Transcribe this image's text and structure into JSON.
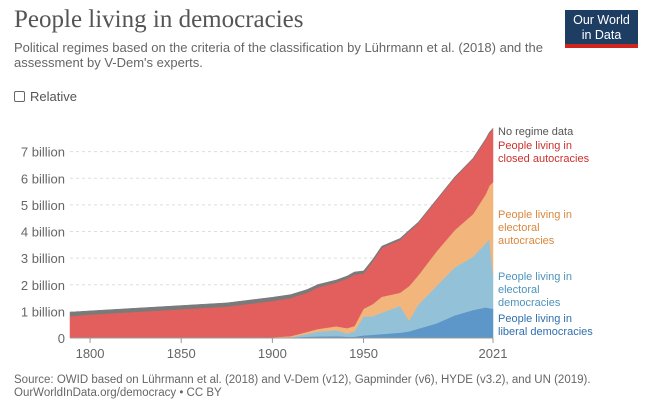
{
  "header": {
    "title": "People living in democracies",
    "subtitle": "Political regimes based on the criteria of the classification by Lührmann et al. (2018) and the assessment by V-Dem's experts.",
    "logo_line1": "Our World",
    "logo_line2": "in Data"
  },
  "controls": {
    "relative_label": "Relative"
  },
  "footer": {
    "source": "Source: OWID based on Lührmann et al. (2018) and V-Dem (v12), Gapminder (v6), HYDE (v3.2), and UN (2019).",
    "link": "OurWorldInData.org/democracy • CC BY"
  },
  "colors": {
    "no_regime": "#7a7a7a",
    "closed": "#e35f5d",
    "electoral_autocracy": "#f2b57c",
    "electoral_democracy": "#93c2d8",
    "liberal_democracy": "#5d96c8",
    "label_no_regime": "#555555",
    "label_closed": "#c8322f",
    "label_electoral_autocracy": "#d8883e",
    "label_electoral_democracy": "#4e93bb",
    "label_liberal_democracy": "#2f6fae"
  },
  "chart_data": {
    "type": "area",
    "stacked": true,
    "title": "People living in democracies",
    "xlabel": "",
    "ylabel": "",
    "xlim": [
      1789,
      2021
    ],
    "ylim": [
      0,
      8
    ],
    "y_unit": "billion",
    "grid": true,
    "x_ticks": [
      {
        "value": 1800,
        "label": "1800"
      },
      {
        "value": 1850,
        "label": "1850"
      },
      {
        "value": 1900,
        "label": "1900"
      },
      {
        "value": 1950,
        "label": "1950"
      },
      {
        "value": 2021,
        "label": "2021"
      }
    ],
    "y_ticks": [
      {
        "value": 0,
        "label": "0"
      },
      {
        "value": 1,
        "label": "1 billion"
      },
      {
        "value": 2,
        "label": "2 billion"
      },
      {
        "value": 3,
        "label": "3 billion"
      },
      {
        "value": 4,
        "label": "4 billion"
      },
      {
        "value": 5,
        "label": "5 billion"
      },
      {
        "value": 6,
        "label": "6 billion"
      },
      {
        "value": 7,
        "label": "7 billion"
      }
    ],
    "x": [
      1789,
      1800,
      1825,
      1850,
      1875,
      1900,
      1910,
      1919,
      1925,
      1935,
      1941,
      1945,
      1950,
      1955,
      1960,
      1970,
      1975,
      1980,
      1990,
      2000,
      2010,
      2017,
      2019,
      2021
    ],
    "series": [
      {
        "key": "liberal_democracy",
        "name": "People living in liberal democracies",
        "values": [
          0,
          0,
          0,
          0,
          0,
          0.01,
          0.02,
          0.05,
          0.06,
          0.07,
          0.05,
          0.05,
          0.1,
          0.12,
          0.15,
          0.2,
          0.25,
          0.35,
          0.55,
          0.85,
          1.05,
          1.15,
          1.12,
          1.1
        ]
      },
      {
        "key": "electoral_democracy",
        "name": "People living in electoral democracies",
        "values": [
          0,
          0,
          0,
          0,
          0,
          0,
          0.01,
          0.1,
          0.18,
          0.22,
          0.12,
          0.2,
          0.7,
          0.7,
          0.8,
          1.0,
          0.4,
          0.9,
          1.4,
          1.8,
          2.0,
          2.4,
          2.6,
          1.3
        ]
      },
      {
        "key": "electoral_autocracy",
        "name": "People living in electoral autocracies",
        "values": [
          0,
          0,
          0,
          0,
          0.01,
          0.02,
          0.04,
          0.08,
          0.1,
          0.15,
          0.2,
          0.2,
          0.3,
          0.45,
          0.6,
          0.5,
          1.3,
          1.1,
          1.3,
          1.4,
          1.6,
          1.85,
          2.0,
          3.45
        ]
      },
      {
        "key": "closed",
        "name": "People living in closed autocracies",
        "values": [
          0.82,
          0.88,
          0.98,
          1.08,
          1.17,
          1.36,
          1.43,
          1.47,
          1.56,
          1.64,
          1.86,
          1.93,
          1.32,
          1.6,
          1.83,
          1.98,
          2.05,
          1.96,
          1.92,
          1.97,
          2.07,
          2.05,
          1.98,
          2.0
        ]
      },
      {
        "key": "no_regime",
        "name": "No regime data",
        "values": [
          0.15,
          0.14,
          0.14,
          0.14,
          0.14,
          0.14,
          0.13,
          0.12,
          0.11,
          0.1,
          0.1,
          0.1,
          0.1,
          0.08,
          0.07,
          0.06,
          0.05,
          0.04,
          0.03,
          0.03,
          0.03,
          0.03,
          0.03,
          0.03
        ]
      }
    ],
    "labels": [
      {
        "key": "no_regime",
        "lines": [
          "No regime data"
        ]
      },
      {
        "key": "closed",
        "lines": [
          "People living in",
          "closed autocracies"
        ]
      },
      {
        "key": "electoral_autocracy",
        "lines": [
          "People living in",
          "electoral",
          "autocracies"
        ]
      },
      {
        "key": "electoral_democracy",
        "lines": [
          "People living in",
          "electoral",
          "democracies"
        ]
      },
      {
        "key": "liberal_democracy",
        "lines": [
          "People living in",
          "liberal democracies"
        ]
      }
    ]
  }
}
